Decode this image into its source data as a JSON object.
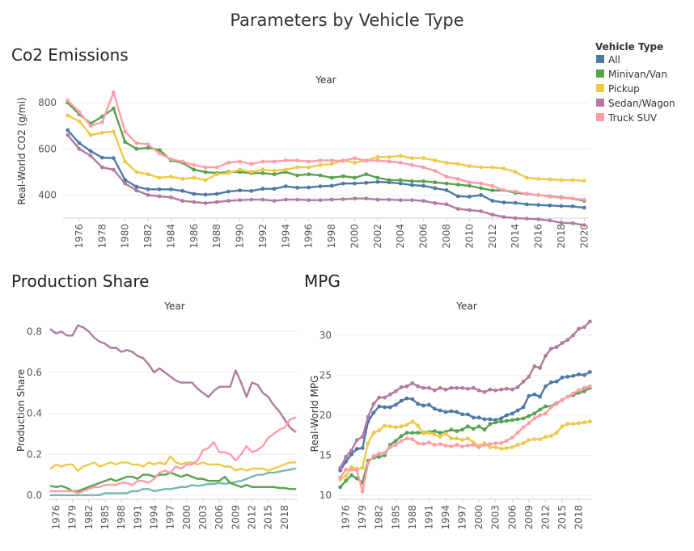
{
  "title": "Parameters by Vehicle Type",
  "legend": {
    "title": "Vehicle Type",
    "items": [
      {
        "label": "All",
        "color": "#4e79a7"
      },
      {
        "label": "Minivan/Van",
        "color": "#59a14f"
      },
      {
        "label": "Pickup",
        "color": "#edc948"
      },
      {
        "label": "Sedan/Wagon",
        "color": "#b07aa1"
      },
      {
        "label": "Truck SUV",
        "color": "#ff9da7"
      }
    ]
  },
  "chart_data": [
    {
      "id": "co2",
      "type": "line",
      "title": "Co2 Emissions",
      "column_header": "Year",
      "xlabel": "",
      "ylabel": "Real-World CO2 (g/mi)",
      "x": [
        1975,
        1976,
        1977,
        1978,
        1979,
        1980,
        1981,
        1982,
        1983,
        1984,
        1985,
        1986,
        1987,
        1988,
        1989,
        1990,
        1991,
        1992,
        1993,
        1994,
        1995,
        1996,
        1997,
        1998,
        1999,
        2000,
        2001,
        2002,
        2003,
        2004,
        2005,
        2006,
        2007,
        2008,
        2009,
        2010,
        2011,
        2012,
        2013,
        2014,
        2015,
        2016,
        2017,
        2018,
        2019,
        2020
      ],
      "xlim": [
        1974.6,
        2020.4
      ],
      "ylim": [
        300,
        860
      ],
      "yticks": [
        400,
        600,
        800
      ],
      "xticks": [
        1976,
        1978,
        1980,
        1982,
        1984,
        1986,
        1988,
        1990,
        1992,
        1994,
        1996,
        1998,
        2000,
        2002,
        2004,
        2006,
        2008,
        2010,
        2012,
        2014,
        2016,
        2018,
        2020
      ],
      "markers": true,
      "series": [
        {
          "name": "All",
          "color": "#4e79a7",
          "values": [
            681,
            625,
            590,
            562,
            560,
            466,
            436,
            425,
            425,
            425,
            418,
            405,
            402,
            405,
            415,
            420,
            418,
            427,
            427,
            438,
            432,
            433,
            438,
            440,
            450,
            450,
            453,
            457,
            455,
            450,
            443,
            440,
            430,
            421,
            395,
            393,
            400,
            375,
            368,
            366,
            360,
            357,
            355,
            352,
            351,
            345
          ]
        },
        {
          "name": "Minivan/Van",
          "color": "#59a14f",
          "values": [
            800,
            750,
            710,
            740,
            775,
            630,
            600,
            605,
            595,
            550,
            540,
            510,
            500,
            495,
            500,
            500,
            495,
            495,
            490,
            500,
            485,
            490,
            485,
            475,
            482,
            475,
            490,
            475,
            465,
            465,
            460,
            460,
            455,
            450,
            445,
            440,
            430,
            420,
            420,
            410,
            405,
            400,
            395,
            390,
            385,
            375
          ]
        },
        {
          "name": "Pickup",
          "color": "#edc948",
          "values": [
            745,
            720,
            660,
            670,
            675,
            545,
            500,
            490,
            475,
            480,
            470,
            475,
            465,
            490,
            495,
            510,
            500,
            510,
            505,
            510,
            520,
            520,
            530,
            535,
            550,
            540,
            550,
            565,
            565,
            570,
            560,
            560,
            550,
            540,
            535,
            525,
            520,
            520,
            515,
            500,
            475,
            470,
            468,
            465,
            465,
            462
          ]
        },
        {
          "name": "Sedan/Wagon",
          "color": "#b07aa1",
          "values": [
            660,
            600,
            570,
            520,
            510,
            450,
            420,
            400,
            395,
            390,
            375,
            370,
            365,
            370,
            375,
            378,
            380,
            380,
            375,
            380,
            380,
            378,
            378,
            380,
            382,
            385,
            385,
            380,
            380,
            378,
            378,
            375,
            365,
            360,
            340,
            335,
            330,
            315,
            305,
            300,
            298,
            295,
            290,
            280,
            278,
            270
          ]
        },
        {
          "name": "Truck SUV",
          "color": "#ff9da7",
          "values": [
            810,
            760,
            700,
            715,
            845,
            675,
            625,
            620,
            580,
            555,
            545,
            530,
            520,
            520,
            540,
            545,
            535,
            545,
            545,
            550,
            550,
            545,
            550,
            550,
            548,
            560,
            548,
            550,
            545,
            540,
            530,
            520,
            505,
            480,
            470,
            455,
            450,
            440,
            420,
            415,
            405,
            400,
            393,
            388,
            385,
            380
          ]
        }
      ]
    },
    {
      "id": "share",
      "type": "line",
      "title": "Production Share",
      "column_header": "Year",
      "xlabel": "",
      "ylabel": "Production Share",
      "x": [
        1975,
        1976,
        1977,
        1978,
        1979,
        1980,
        1981,
        1982,
        1983,
        1984,
        1985,
        1986,
        1987,
        1988,
        1989,
        1990,
        1991,
        1992,
        1993,
        1994,
        1995,
        1996,
        1997,
        1998,
        1999,
        2000,
        2001,
        2002,
        2003,
        2004,
        2005,
        2006,
        2007,
        2008,
        2009,
        2010,
        2011,
        2012,
        2013,
        2014,
        2015,
        2016,
        2017,
        2018,
        2019,
        2020
      ],
      "xlim": [
        1974.6,
        2020.4
      ],
      "ylim": [
        -0.02,
        0.88
      ],
      "yticks": [
        0.0,
        0.2,
        0.4,
        0.6,
        0.8
      ],
      "ytick_labels": [
        "0.0",
        "0.2",
        "0.4",
        "0.6",
        "0.8"
      ],
      "xticks": [
        1976,
        1979,
        1982,
        1985,
        1988,
        1991,
        1994,
        1997,
        2000,
        2003,
        2006,
        2009,
        2012,
        2015,
        2018
      ],
      "markers": false,
      "series": [
        {
          "name": "All",
          "color": "#76b7b2",
          "values": [
            0,
            0,
            0,
            0,
            0,
            0,
            0,
            0,
            0,
            0,
            0.01,
            0.01,
            0.01,
            0.01,
            0.01,
            0.02,
            0.02,
            0.03,
            0.03,
            0.02,
            0.025,
            0.03,
            0.03,
            0.035,
            0.04,
            0.04,
            0.05,
            0.045,
            0.05,
            0.055,
            0.055,
            0.06,
            0.055,
            0.06,
            0.065,
            0.07,
            0.08,
            0.09,
            0.1,
            0.1,
            0.11,
            0.11,
            0.115,
            0.12,
            0.125,
            0.13
          ]
        },
        {
          "name": "Minivan/Van",
          "color": "#59a14f",
          "values": [
            0.045,
            0.04,
            0.045,
            0.035,
            0.02,
            0.02,
            0.03,
            0.04,
            0.05,
            0.06,
            0.07,
            0.08,
            0.07,
            0.08,
            0.09,
            0.09,
            0.08,
            0.1,
            0.1,
            0.09,
            0.1,
            0.1,
            0.11,
            0.1,
            0.09,
            0.1,
            0.09,
            0.08,
            0.08,
            0.07,
            0.07,
            0.07,
            0.09,
            0.06,
            0.05,
            0.04,
            0.05,
            0.04,
            0.04,
            0.04,
            0.04,
            0.04,
            0.035,
            0.035,
            0.03,
            0.03
          ]
        },
        {
          "name": "Pickup",
          "color": "#edc948",
          "values": [
            0.13,
            0.15,
            0.14,
            0.15,
            0.15,
            0.12,
            0.14,
            0.15,
            0.16,
            0.14,
            0.15,
            0.16,
            0.15,
            0.16,
            0.16,
            0.15,
            0.15,
            0.14,
            0.16,
            0.15,
            0.16,
            0.15,
            0.19,
            0.16,
            0.15,
            0.16,
            0.16,
            0.15,
            0.16,
            0.15,
            0.15,
            0.15,
            0.14,
            0.14,
            0.12,
            0.13,
            0.12,
            0.13,
            0.13,
            0.13,
            0.12,
            0.13,
            0.14,
            0.15,
            0.16,
            0.16
          ]
        },
        {
          "name": "Sedan/Wagon",
          "color": "#b07aa1",
          "values": [
            0.81,
            0.79,
            0.8,
            0.78,
            0.78,
            0.83,
            0.82,
            0.8,
            0.77,
            0.75,
            0.74,
            0.72,
            0.72,
            0.7,
            0.71,
            0.7,
            0.68,
            0.67,
            0.64,
            0.6,
            0.62,
            0.6,
            0.58,
            0.56,
            0.55,
            0.55,
            0.55,
            0.52,
            0.5,
            0.48,
            0.51,
            0.53,
            0.53,
            0.53,
            0.61,
            0.55,
            0.48,
            0.55,
            0.54,
            0.5,
            0.48,
            0.44,
            0.41,
            0.37,
            0.33,
            0.31
          ]
        },
        {
          "name": "Truck SUV",
          "color": "#ff9da7",
          "values": [
            0.02,
            0.02,
            0.02,
            0.02,
            0.02,
            0.01,
            0.02,
            0.03,
            0.04,
            0.04,
            0.05,
            0.05,
            0.05,
            0.06,
            0.06,
            0.05,
            0.07,
            0.07,
            0.06,
            0.08,
            0.11,
            0.12,
            0.11,
            0.14,
            0.13,
            0.15,
            0.15,
            0.17,
            0.22,
            0.23,
            0.26,
            0.21,
            0.21,
            0.2,
            0.17,
            0.2,
            0.24,
            0.21,
            0.22,
            0.24,
            0.28,
            0.3,
            0.32,
            0.33,
            0.37,
            0.38
          ]
        }
      ]
    },
    {
      "id": "mpg",
      "type": "line",
      "title": "MPG",
      "column_header": "Year",
      "xlabel": "",
      "ylabel": "Real-World MPG",
      "x": [
        1975,
        1976,
        1977,
        1978,
        1979,
        1980,
        1981,
        1982,
        1983,
        1984,
        1985,
        1986,
        1987,
        1988,
        1989,
        1990,
        1991,
        1992,
        1993,
        1994,
        1995,
        1996,
        1997,
        1998,
        1999,
        2000,
        2001,
        2002,
        2003,
        2004,
        2005,
        2006,
        2007,
        2008,
        2009,
        2010,
        2011,
        2012,
        2013,
        2014,
        2015,
        2016,
        2017,
        2018,
        2019,
        2020
      ],
      "xlim": [
        1974.6,
        2020.4
      ],
      "ylim": [
        9.5,
        32.5
      ],
      "yticks": [
        10,
        15,
        20,
        25,
        30
      ],
      "xticks": [
        1976,
        1979,
        1982,
        1985,
        1988,
        1991,
        1994,
        1997,
        2000,
        2003,
        2006,
        2009,
        2012,
        2015,
        2018
      ],
      "markers": true,
      "series": [
        {
          "name": "All",
          "color": "#4e79a7",
          "values": [
            13.1,
            14.2,
            15.1,
            15.8,
            15.9,
            19.2,
            20.3,
            21.1,
            21.0,
            21.0,
            21.3,
            21.8,
            22.1,
            22.0,
            21.4,
            21.2,
            21.3,
            20.8,
            20.6,
            20.4,
            20.5,
            20.4,
            20.1,
            20.1,
            19.7,
            19.7,
            19.5,
            19.5,
            19.4,
            19.6,
            20.0,
            20.2,
            20.6,
            21.0,
            22.4,
            22.6,
            22.3,
            23.6,
            24.1,
            24.2,
            24.7,
            24.8,
            24.9,
            25.1,
            25.0,
            25.4
          ]
        },
        {
          "name": "Minivan/Van",
          "color": "#59a14f",
          "values": [
            11.0,
            11.8,
            12.5,
            12.1,
            11.6,
            14.3,
            14.7,
            14.8,
            15.0,
            16.3,
            16.8,
            17.4,
            17.8,
            17.8,
            17.8,
            17.8,
            17.9,
            18.0,
            17.8,
            17.9,
            18.2,
            18.0,
            18.2,
            18.6,
            18.3,
            18.6,
            18.2,
            18.9,
            19.1,
            19.2,
            19.3,
            19.4,
            19.5,
            19.6,
            19.9,
            20.2,
            20.7,
            21.1,
            21.1,
            21.5,
            21.9,
            22.3,
            22.5,
            22.8,
            23.0,
            23.4
          ]
        },
        {
          "name": "Pickup",
          "color": "#edc948",
          "values": [
            12.0,
            12.4,
            13.5,
            13.3,
            13.4,
            16.5,
            17.8,
            18.1,
            18.7,
            18.6,
            18.5,
            18.6,
            18.8,
            19.2,
            18.7,
            17.7,
            17.8,
            17.6,
            17.3,
            17.7,
            17.1,
            17.1,
            16.9,
            17.1,
            16.6,
            16.2,
            16.5,
            16.0,
            16.0,
            15.8,
            15.9,
            16.0,
            16.3,
            16.5,
            16.9,
            17.0,
            17.0,
            17.3,
            17.4,
            17.8,
            18.6,
            18.9,
            18.9,
            19.0,
            19.1,
            19.2
          ]
        },
        {
          "name": "Sedan/Wagon",
          "color": "#b07aa1",
          "values": [
            13.4,
            14.8,
            15.6,
            16.9,
            17.3,
            19.8,
            21.4,
            22.2,
            22.2,
            22.6,
            23.0,
            23.5,
            23.6,
            24.0,
            23.6,
            23.4,
            23.4,
            23.1,
            23.4,
            23.2,
            23.4,
            23.4,
            23.4,
            23.3,
            23.4,
            23.1,
            22.9,
            23.2,
            23.1,
            23.2,
            23.3,
            23.2,
            23.5,
            24.2,
            24.8,
            26.1,
            25.9,
            27.4,
            28.3,
            28.5,
            29.0,
            29.4,
            30.0,
            30.8,
            31.0,
            31.7
          ]
        },
        {
          "name": "Truck SUV",
          "color": "#ff9da7",
          "values": [
            12.2,
            13.2,
            13.2,
            13.1,
            10.5,
            14.0,
            14.9,
            15.2,
            15.3,
            16.0,
            16.3,
            16.8,
            17.1,
            17.0,
            16.5,
            16.4,
            16.6,
            16.3,
            16.4,
            16.2,
            16.1,
            16.3,
            16.1,
            16.2,
            16.3,
            16.0,
            16.3,
            16.4,
            16.5,
            16.5,
            16.8,
            17.2,
            17.8,
            18.5,
            19.0,
            19.6,
            20.0,
            20.2,
            21.0,
            21.4,
            21.9,
            22.3,
            22.7,
            23.1,
            23.4,
            23.6
          ]
        }
      ]
    }
  ]
}
